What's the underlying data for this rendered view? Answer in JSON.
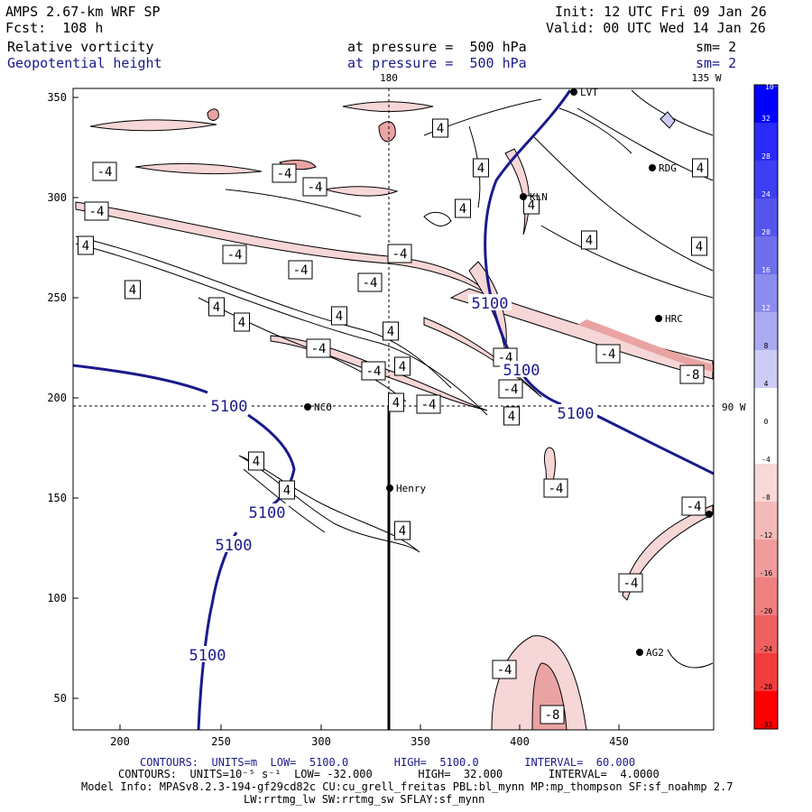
{
  "header": {
    "model": "AMPS 2.67-km WRF SP",
    "forecast": "Fcst:  108 h",
    "init": "Init: 12 UTC Fri 09 Jan 26",
    "valid": "Valid: 00 UTC Wed 14 Jan 26",
    "field1_name": "Relative vorticity",
    "field1_level": "at pressure =  500 hPa",
    "field1_sm": "sm= 2",
    "field2_name": "Geopotential height",
    "field2_level": "at pressure =  500 hPa",
    "field2_sm": "sm= 2"
  },
  "map": {
    "xticks": [
      "200",
      "250",
      "300",
      "350",
      "400",
      "450"
    ],
    "yticks": [
      "350",
      "300",
      "250",
      "200",
      "150",
      "100",
      "50"
    ],
    "top_labels": [
      "180",
      "135 W"
    ],
    "right_label": "90 W",
    "stations": [
      "LVT",
      "RDG",
      "KLN",
      "HRC",
      "NCO",
      "Henry",
      "AG2"
    ],
    "height_contour_label": "5100",
    "vort_labels": [
      "-4",
      "4",
      "-8"
    ],
    "colors": {
      "height": "#1a1a8c",
      "neg_fill": "#f6d6d6",
      "neg_fill2": "#eaa3a3",
      "frame": "#000000"
    }
  },
  "colorbar": {
    "title": "10⁻⁵ s⁻¹",
    "labels": [
      "32",
      "28",
      "24",
      "20",
      "16",
      "12",
      "8",
      "4",
      "0",
      "-4",
      "-8",
      "-12",
      "-16",
      "-20",
      "-24",
      "-28",
      "-32"
    ],
    "colors": [
      "#0000ff",
      "#2a2afa",
      "#3e3ef4",
      "#5555ee",
      "#6f6fee",
      "#8c8cee",
      "#aaaaf2",
      "#ccccf6",
      "#ffffff",
      "#ffffff",
      "#f8d8d8",
      "#f3baba",
      "#f09c9c",
      "#ee8080",
      "#ef6060",
      "#f33c3c",
      "#ff0000"
    ]
  },
  "footer": {
    "line1_a": "CONTOURS:  UNITS=m  LOW=  5100.0",
    "line1_b": "HIGH=  5100.0",
    "line1_c": "INTERVAL=  60.000",
    "line2_a": "CONTOURS:  UNITS=10⁻⁵ s⁻¹  LOW= -32.000",
    "line2_b": "HIGH=  32.000",
    "line2_c": "INTERVAL=  4.0000",
    "line3": "Model Info: MPASv8.2.3-194-gf29cd82c CU:cu_grell_freitas PBL:bl_mynn MP:mp_thompson SF:sf_noahmp 2.7",
    "line4": "LW:rrtmg_lw SW:rrtmg_sw SFLAY:sf_mynn"
  }
}
